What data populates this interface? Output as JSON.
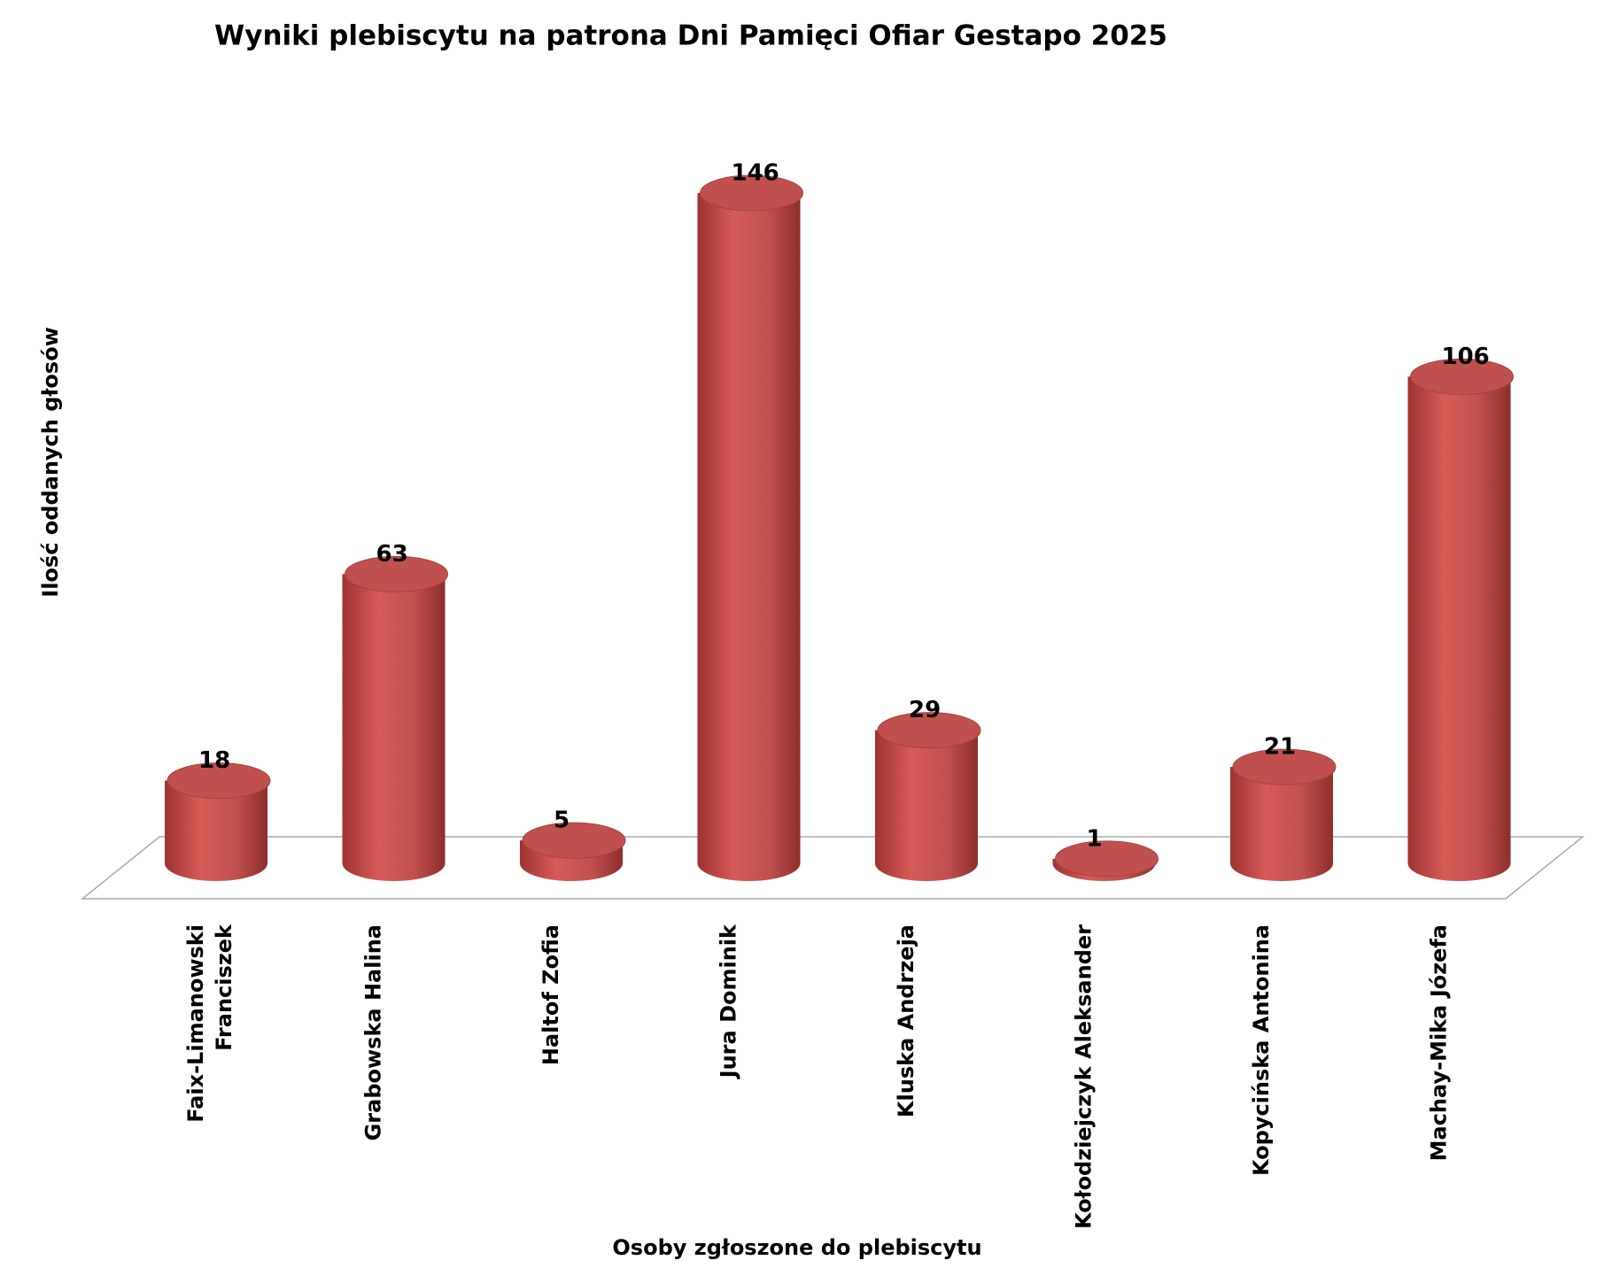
{
  "chart_data": {
    "type": "bar3d",
    "title": "Wyniki plebiscytu na patrona Dni Pamięci Ofiar Gestapo 2025",
    "y_label": "Ilość oddanych głosów",
    "x_label": "Osoby zgłoszone do plebiscytu",
    "categories": [
      "Faix-Limanowski\nFranciszek",
      "Grabowska Halina",
      "Haltof Zofia",
      "Jura Dominik",
      "Kluska Andrzeja",
      "Kołodziejczyk Aleksander",
      "Kopycińska  Antonina",
      "Machay-Mika Józefa"
    ],
    "values": [
      18,
      63,
      5,
      146,
      29,
      1,
      21,
      106
    ],
    "color": "#c0504d"
  }
}
